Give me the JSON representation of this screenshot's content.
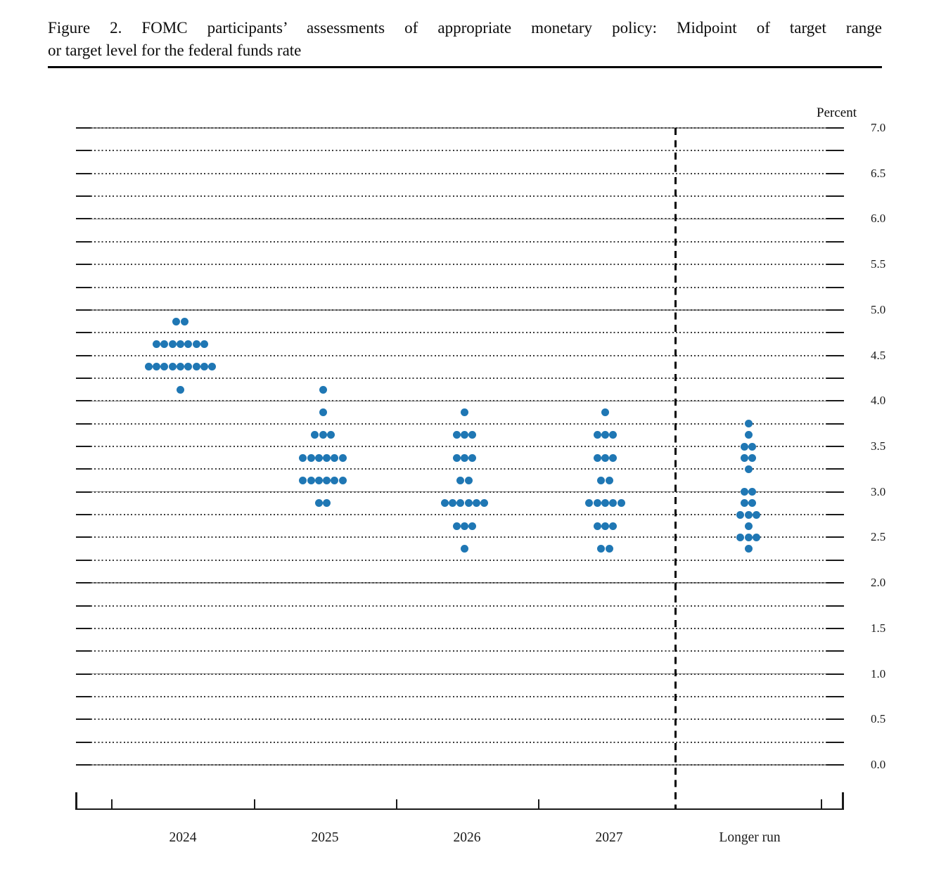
{
  "figure": {
    "title_line1": "Figure 2.  FOMC participants’ assessments of appropriate monetary policy:  Midpoint of target range",
    "title_line2": "or target level for the federal funds rate"
  },
  "chart_data": {
    "type": "scatter",
    "title": "Figure 2. FOMC participants’ assessments of appropriate monetary policy: Midpoint of target range or target level for the federal funds rate",
    "ylabel": "Percent",
    "xlabel": "",
    "ylim": [
      0.0,
      7.0
    ],
    "gridline_step": 0.25,
    "grid_style": "solid lines at whole percents, dotted lines at quarter percents, short solid end caps",
    "ytick_label_step": 0.5,
    "ytick_labels": [
      "7.0",
      "6.5",
      "6.0",
      "5.5",
      "5.0",
      "4.5",
      "4.0",
      "3.5",
      "3.0",
      "2.5",
      "2.0",
      "1.5",
      "1.0",
      "0.5",
      "0.0"
    ],
    "categories": [
      "2024",
      "2025",
      "2026",
      "2027",
      "Longer run"
    ],
    "separator": {
      "description": "dashed vertical line between 2027 and Longer run"
    },
    "dot_color": "#1f77b4",
    "dot_unit": "one dot = one participant's judgment of the midpoint of the appropriate target range or level (percent)",
    "participants_per_year": 19,
    "series": [
      {
        "name": "2024",
        "dots": [
          {
            "rate": 4.875,
            "count": 2
          },
          {
            "rate": 4.625,
            "count": 7
          },
          {
            "rate": 4.375,
            "count": 9
          },
          {
            "rate": 4.125,
            "count": 1
          }
        ]
      },
      {
        "name": "2025",
        "dots": [
          {
            "rate": 4.125,
            "count": 1
          },
          {
            "rate": 3.875,
            "count": 1
          },
          {
            "rate": 3.625,
            "count": 3
          },
          {
            "rate": 3.375,
            "count": 6
          },
          {
            "rate": 3.125,
            "count": 6
          },
          {
            "rate": 2.875,
            "count": 2
          }
        ]
      },
      {
        "name": "2026",
        "dots": [
          {
            "rate": 3.875,
            "count": 1
          },
          {
            "rate": 3.625,
            "count": 3
          },
          {
            "rate": 3.375,
            "count": 3
          },
          {
            "rate": 3.125,
            "count": 2
          },
          {
            "rate": 2.875,
            "count": 6
          },
          {
            "rate": 2.625,
            "count": 3
          },
          {
            "rate": 2.375,
            "count": 1
          }
        ]
      },
      {
        "name": "2027",
        "dots": [
          {
            "rate": 3.875,
            "count": 1
          },
          {
            "rate": 3.625,
            "count": 3
          },
          {
            "rate": 3.375,
            "count": 3
          },
          {
            "rate": 3.125,
            "count": 2
          },
          {
            "rate": 2.875,
            "count": 5
          },
          {
            "rate": 2.625,
            "count": 3
          },
          {
            "rate": 2.375,
            "count": 2
          }
        ]
      },
      {
        "name": "Longer run",
        "dots": [
          {
            "rate": 3.75,
            "count": 1
          },
          {
            "rate": 3.625,
            "count": 1
          },
          {
            "rate": 3.5,
            "count": 2
          },
          {
            "rate": 3.375,
            "count": 2
          },
          {
            "rate": 3.25,
            "count": 1
          },
          {
            "rate": 3.0,
            "count": 2
          },
          {
            "rate": 2.875,
            "count": 2
          },
          {
            "rate": 2.75,
            "count": 3
          },
          {
            "rate": 2.625,
            "count": 1
          },
          {
            "rate": 2.5,
            "count": 3
          },
          {
            "rate": 2.375,
            "count": 1
          }
        ]
      }
    ]
  }
}
